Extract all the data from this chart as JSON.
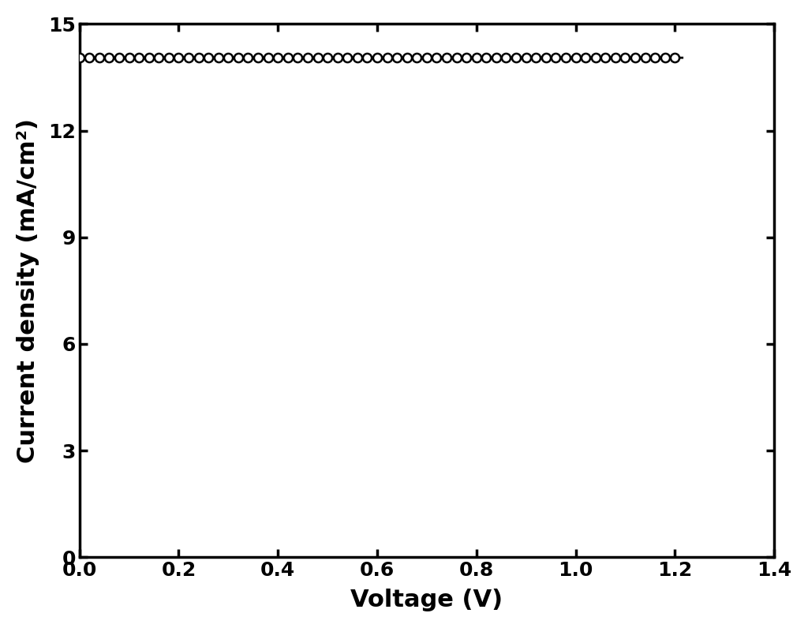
{
  "title": "",
  "xlabel": "Voltage (V)",
  "ylabel": "Current density (mA/cm²)",
  "xlim": [
    0,
    1.4
  ],
  "ylim": [
    0,
    15
  ],
  "xticks": [
    0.0,
    0.2,
    0.4,
    0.6,
    0.8,
    1.0,
    1.2,
    1.4
  ],
  "yticks": [
    0,
    3,
    6,
    9,
    12,
    15
  ],
  "line_color": "#000000",
  "marker": "o",
  "marker_facecolor": "white",
  "marker_edgecolor": "#000000",
  "marker_size": 8,
  "linewidth": 2.0,
  "Jsc": 14.05,
  "Voc": 1.21,
  "background_color": "#ffffff",
  "xlabel_fontsize": 22,
  "ylabel_fontsize": 22,
  "tick_fontsize": 18,
  "tick_fontweight": "bold",
  "label_fontweight": "bold"
}
